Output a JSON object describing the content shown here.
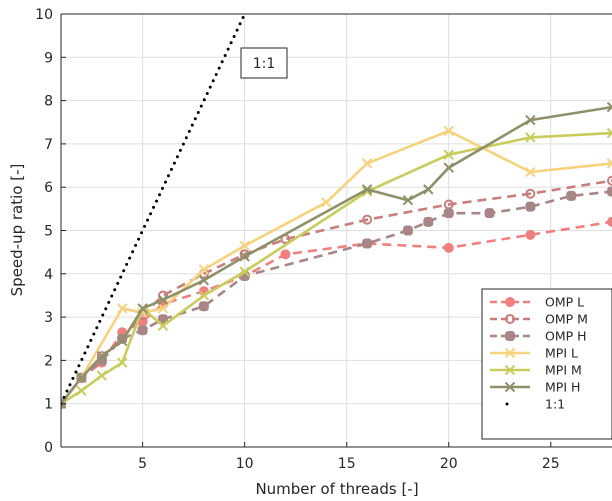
{
  "chart_data": {
    "type": "line",
    "title": "",
    "xlabel": "Number of threads [-]",
    "ylabel": "Speed-up ratio [-]",
    "xlim": [
      1,
      28
    ],
    "ylim": [
      0,
      10
    ],
    "xticks": [
      5,
      10,
      15,
      20,
      25
    ],
    "yticks": [
      0,
      1,
      2,
      3,
      4,
      5,
      6,
      7,
      8,
      9,
      10
    ],
    "grid": true,
    "legend_position": "bottom-right",
    "annotation": "1:1",
    "series": [
      {
        "name": "OMP L",
        "color": "#f08080",
        "dash": true,
        "marker": "filled-circle",
        "points": [
          [
            1,
            1.0
          ],
          [
            2,
            1.6
          ],
          [
            3,
            1.95
          ],
          [
            4,
            2.65
          ],
          [
            5,
            2.9
          ],
          [
            6,
            3.3
          ],
          [
            8,
            3.6
          ],
          [
            10,
            3.95
          ],
          [
            12,
            4.45
          ],
          [
            16,
            4.7
          ],
          [
            20,
            4.6
          ],
          [
            24,
            4.9
          ],
          [
            28,
            5.2
          ]
        ]
      },
      {
        "name": "OMP M",
        "color": "#c97d7d",
        "dash": true,
        "marker": "circle",
        "points": [
          [
            1,
            1.0
          ],
          [
            2,
            1.6
          ],
          [
            3,
            2.1
          ],
          [
            4,
            2.5
          ],
          [
            5,
            3.05
          ],
          [
            6,
            3.5
          ],
          [
            8,
            4.0
          ],
          [
            10,
            4.45
          ],
          [
            12,
            4.8
          ],
          [
            16,
            5.25
          ],
          [
            20,
            5.6
          ],
          [
            24,
            5.85
          ],
          [
            28,
            6.15
          ]
        ]
      },
      {
        "name": "OMP H",
        "color": "#a88686",
        "dash": true,
        "marker": "square",
        "points": [
          [
            1,
            1.0
          ],
          [
            2,
            1.6
          ],
          [
            3,
            2.0
          ],
          [
            4,
            2.5
          ],
          [
            5,
            2.7
          ],
          [
            6,
            2.95
          ],
          [
            8,
            3.25
          ],
          [
            10,
            3.95
          ],
          [
            16,
            4.7
          ],
          [
            18,
            5.0
          ],
          [
            19,
            5.2
          ],
          [
            20,
            5.4
          ],
          [
            22,
            5.4
          ],
          [
            24,
            5.55
          ],
          [
            26,
            5.8
          ],
          [
            28,
            5.9
          ]
        ]
      },
      {
        "name": "MPI L",
        "color": "#f7d27c",
        "dash": false,
        "marker": "x",
        "points": [
          [
            1,
            1.0
          ],
          [
            2,
            1.6
          ],
          [
            4,
            3.2
          ],
          [
            5,
            3.1
          ],
          [
            6,
            3.2
          ],
          [
            8,
            4.1
          ],
          [
            10,
            4.65
          ],
          [
            14,
            5.65
          ],
          [
            16,
            6.55
          ],
          [
            20,
            7.3
          ],
          [
            24,
            6.35
          ],
          [
            28,
            6.55
          ]
        ]
      },
      {
        "name": "MPI M",
        "color": "#c9cc5c",
        "dash": false,
        "marker": "x",
        "points": [
          [
            1,
            1.0
          ],
          [
            2,
            1.3
          ],
          [
            3,
            1.65
          ],
          [
            4,
            1.95
          ],
          [
            5,
            3.2
          ],
          [
            6,
            2.8
          ],
          [
            8,
            3.5
          ],
          [
            10,
            4.05
          ],
          [
            16,
            5.9
          ],
          [
            20,
            6.75
          ],
          [
            24,
            7.15
          ],
          [
            28,
            7.25
          ]
        ]
      },
      {
        "name": "MPI H",
        "color": "#8f906a",
        "dash": false,
        "marker": "x",
        "points": [
          [
            1,
            1.0
          ],
          [
            2,
            1.6
          ],
          [
            3,
            2.1
          ],
          [
            4,
            2.45
          ],
          [
            5,
            3.2
          ],
          [
            6,
            3.4
          ],
          [
            8,
            3.85
          ],
          [
            10,
            4.4
          ],
          [
            16,
            5.95
          ],
          [
            18,
            5.7
          ],
          [
            19,
            5.95
          ],
          [
            20,
            6.45
          ],
          [
            24,
            7.55
          ],
          [
            28,
            7.85
          ]
        ]
      },
      {
        "name": "1:1",
        "color": "#000000",
        "dash": "dotted",
        "marker": "none",
        "points": [
          [
            1,
            1
          ],
          [
            10,
            10
          ]
        ]
      }
    ]
  }
}
